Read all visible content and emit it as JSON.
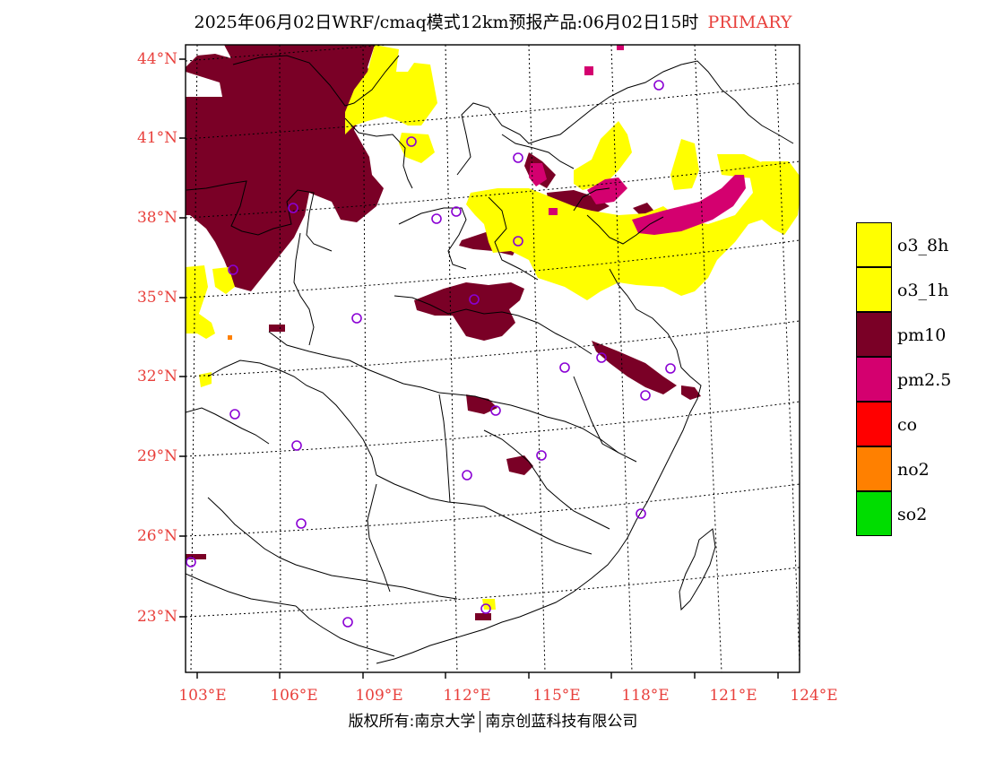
{
  "title": {
    "main": "2025年06月02日WRF/cmaq模式12km预报产品:06月02日15时",
    "tag": "PRIMARY"
  },
  "axes": {
    "lat_labels": [
      "44°N",
      "41°N",
      "38°N",
      "35°N",
      "32°N",
      "29°N",
      "26°N",
      "23°N"
    ],
    "lon_labels": [
      "103°E",
      "106°E",
      "109°E",
      "112°E",
      "115°E",
      "118°E",
      "121°E",
      "124°E"
    ]
  },
  "legend": [
    {
      "label": "o3_8h",
      "color": "#ffff00"
    },
    {
      "label": "o3_1h",
      "color": "#ffff00"
    },
    {
      "label": "pm10",
      "color": "#7a0026"
    },
    {
      "label": "pm2.5",
      "color": "#d4006f"
    },
    {
      "label": "co",
      "color": "#ff0000"
    },
    {
      "label": "no2",
      "color": "#ff8000"
    },
    {
      "label": "so2",
      "color": "#00dd00"
    }
  ],
  "footer": {
    "left": "版权所有:南京大学",
    "right": "南京创蓝科技有限公司"
  }
}
